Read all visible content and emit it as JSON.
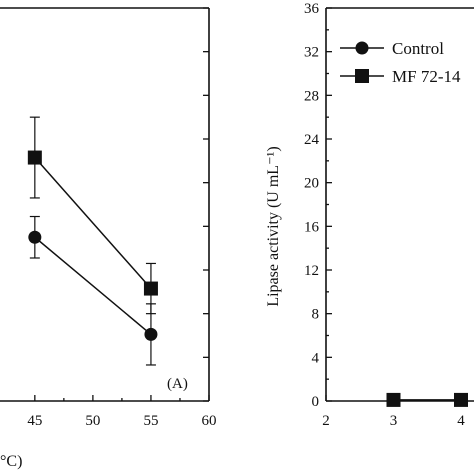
{
  "chart_data": [
    {
      "type": "line",
      "panel_label": "(A)",
      "xlabel_visible": "°C)",
      "x_ticks": [
        45,
        50,
        55,
        60
      ],
      "xlim": [
        42,
        60
      ],
      "ylim": [
        0,
        36
      ],
      "series": [
        {
          "marker": "square",
          "points": [
            {
              "x": 45,
              "y": 22.3,
              "err": 3.7
            },
            {
              "x": 55,
              "y": 10.3,
              "err": 2.3
            }
          ]
        },
        {
          "marker": "circle",
          "points": [
            {
              "x": 45,
              "y": 15.0,
              "err": 1.9
            },
            {
              "x": 55,
              "y": 6.1,
              "err": 2.8
            }
          ]
        }
      ]
    },
    {
      "type": "line",
      "ylabel": "Lipase activity (U mL⁻¹)",
      "x_ticks": [
        2,
        3,
        4
      ],
      "y_ticks": [
        0,
        4,
        8,
        12,
        16,
        20,
        24,
        28,
        32,
        36
      ],
      "xlim": [
        2,
        4.6
      ],
      "ylim": [
        0,
        36
      ],
      "legend_position": "top-left",
      "series": [
        {
          "name": "Control",
          "marker": "circle",
          "points": [
            {
              "x": 3,
              "y": 0.1
            },
            {
              "x": 4,
              "y": 0.1
            }
          ]
        },
        {
          "name": "MF 72-14",
          "marker": "square",
          "points": [
            {
              "x": 3,
              "y": 0.1
            },
            {
              "x": 4,
              "y": 0.1
            }
          ]
        }
      ]
    }
  ]
}
